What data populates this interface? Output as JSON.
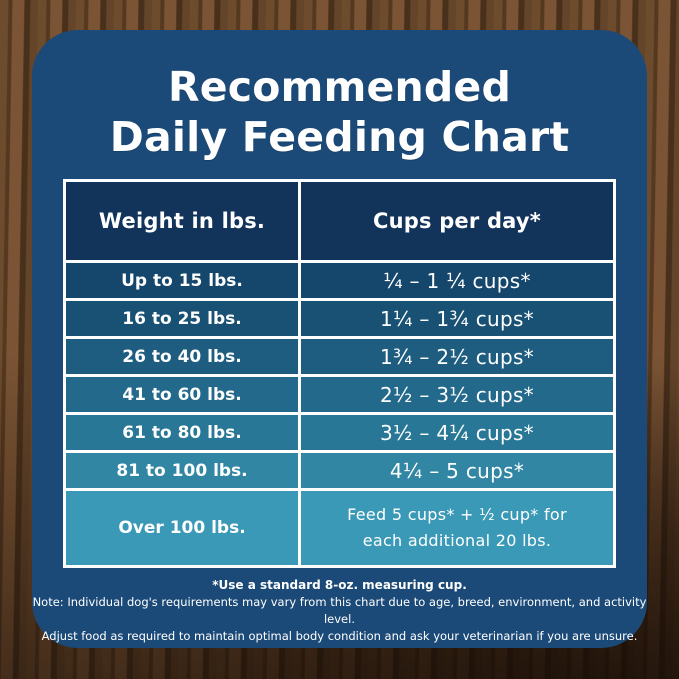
{
  "title": {
    "line1": "Recommended",
    "line2": "Daily Feeding Chart"
  },
  "table": {
    "headers": {
      "weight": "Weight in lbs.",
      "cups": "Cups per day*"
    },
    "rows": [
      {
        "weight": "Up to 15 lbs.",
        "cups": "¼ – 1 ¼ cups*"
      },
      {
        "weight": "16 to 25 lbs.",
        "cups": "1¼ – 1¾ cups*"
      },
      {
        "weight": "26 to 40 lbs.",
        "cups": "1¾ – 2½ cups*"
      },
      {
        "weight": "41 to 60 lbs.",
        "cups": "2½ – 3½ cups*"
      },
      {
        "weight": "61 to 80 lbs.",
        "cups": "3½ – 4¼ cups*"
      },
      {
        "weight": "81 to 100 lbs.",
        "cups": "4¼ – 5 cups*"
      },
      {
        "weight": "Over 100 lbs.",
        "cups": "Feed 5 cups* + ½ cup* for\neach additional 20 lbs."
      }
    ]
  },
  "notes": {
    "measuring": "*Use a standard 8-oz. measuring cup.",
    "disclaimer1": "Note: Individual dog's requirements may vary from this chart due to age, breed, environment, and activity level.",
    "disclaimer2": "Adjust food as required to maintain optimal body condition and ask your veterinarian if you are unsure."
  },
  "colors": {
    "card_background": "#1b4a78",
    "header_cell": "#12335a",
    "row_gradient": [
      "#15466b",
      "#185174",
      "#1e5d80",
      "#23698b",
      "#297796",
      "#3186a4",
      "#3a99b6"
    ],
    "table_border": "#ffffff",
    "text": "#ffffff"
  },
  "chart_data": {
    "type": "table",
    "title": "Recommended Daily Feeding Chart",
    "columns": [
      "Weight in lbs.",
      "Cups per day*"
    ],
    "rows": [
      [
        "Up to 15 lbs.",
        "¼ – 1 ¼ cups*"
      ],
      [
        "16 to 25 lbs.",
        "1¼ – 1¾ cups*"
      ],
      [
        "26 to 40 lbs.",
        "1¾ – 2½ cups*"
      ],
      [
        "41 to 60 lbs.",
        "2½ – 3½ cups*"
      ],
      [
        "61 to 80 lbs.",
        "3½ – 4¼ cups*"
      ],
      [
        "81 to 100 lbs.",
        "4¼ – 5 cups*"
      ],
      [
        "Over 100 lbs.",
        "Feed 5 cups* + ½ cup* for each additional 20 lbs."
      ]
    ],
    "footnotes": [
      "*Use a standard 8-oz. measuring cup.",
      "Note: Individual dog's requirements may vary from this chart due to age, breed, environment, and activity level.",
      "Adjust food as required to maintain optimal body condition and ask your veterinarian if you are unsure."
    ]
  }
}
